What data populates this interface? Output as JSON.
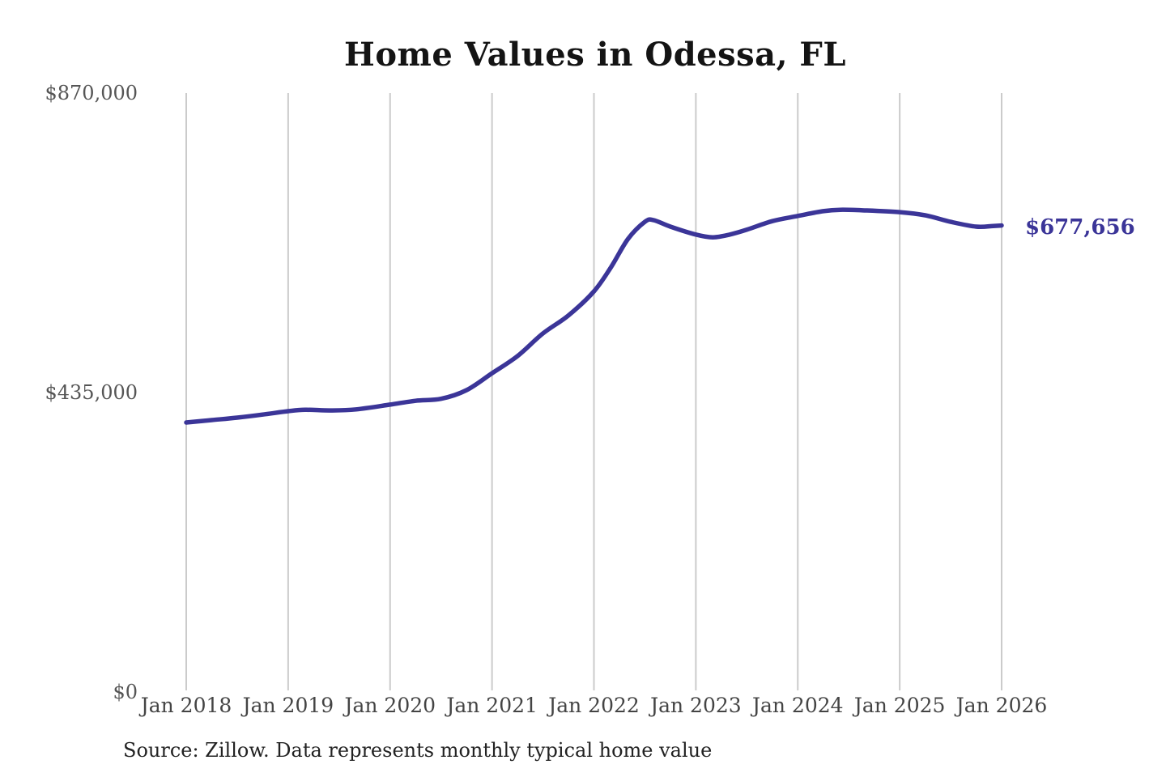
{
  "title": "Home Values in Odessa, FL",
  "source_note": "Source: Zillow. Data represents monthly typical home value",
  "colors": {
    "accent_line": "#3b3598",
    "grid": "#cbcbcb",
    "title_text": "#141414",
    "y_tick_text": "#555555",
    "x_tick_text": "#444444",
    "source_text": "#222222",
    "background": "#ffffff"
  },
  "chart_data": {
    "type": "line",
    "title": "Home Values in Odessa, FL",
    "xlabel": "",
    "ylabel": "",
    "grid": "vertical-only",
    "legend": "none",
    "ylim": [
      0,
      870000
    ],
    "y_ticks": [
      {
        "label": "$870,000",
        "value": 870000
      },
      {
        "label": "$435,000",
        "value": 435000
      },
      {
        "label": "$0",
        "value": 0
      }
    ],
    "x_tick_labels": [
      "Jan 2018",
      "Jan 2019",
      "Jan 2020",
      "Jan 2021",
      "Jan 2022",
      "Jan 2023",
      "Jan 2024",
      "Jan 2025",
      "Jan 2026"
    ],
    "end_label": "$677,656",
    "end_value": 677656,
    "series": [
      {
        "name": "Monthly typical home value",
        "points": [
          {
            "date": "2018-01",
            "value": 391500
          },
          {
            "date": "2018-04",
            "value": 395000
          },
          {
            "date": "2018-07",
            "value": 398500
          },
          {
            "date": "2018-10",
            "value": 403000
          },
          {
            "date": "2019-01",
            "value": 408000
          },
          {
            "date": "2019-03",
            "value": 410000
          },
          {
            "date": "2019-06",
            "value": 409000
          },
          {
            "date": "2019-09",
            "value": 410500
          },
          {
            "date": "2020-01",
            "value": 417500
          },
          {
            "date": "2020-04",
            "value": 423000
          },
          {
            "date": "2020-07",
            "value": 426000
          },
          {
            "date": "2020-10",
            "value": 438500
          },
          {
            "date": "2021-01",
            "value": 463000
          },
          {
            "date": "2021-04",
            "value": 488000
          },
          {
            "date": "2021-07",
            "value": 521000
          },
          {
            "date": "2021-10",
            "value": 547000
          },
          {
            "date": "2022-01",
            "value": 582000
          },
          {
            "date": "2022-03",
            "value": 617000
          },
          {
            "date": "2022-05",
            "value": 658000
          },
          {
            "date": "2022-07",
            "value": 683000
          },
          {
            "date": "2022-08",
            "value": 685500
          },
          {
            "date": "2022-10",
            "value": 676000
          },
          {
            "date": "2023-01",
            "value": 664500
          },
          {
            "date": "2023-03",
            "value": 660500
          },
          {
            "date": "2023-05",
            "value": 664500
          },
          {
            "date": "2023-07",
            "value": 671500
          },
          {
            "date": "2023-10",
            "value": 684000
          },
          {
            "date": "2024-01",
            "value": 691500
          },
          {
            "date": "2024-04",
            "value": 698500
          },
          {
            "date": "2024-06",
            "value": 700500
          },
          {
            "date": "2024-09",
            "value": 699500
          },
          {
            "date": "2025-01",
            "value": 697000
          },
          {
            "date": "2025-04",
            "value": 692500
          },
          {
            "date": "2025-07",
            "value": 683000
          },
          {
            "date": "2025-10",
            "value": 676000
          },
          {
            "date": "2025-12",
            "value": 677000
          },
          {
            "date": "2026-01",
            "value": 677656
          }
        ]
      }
    ]
  }
}
